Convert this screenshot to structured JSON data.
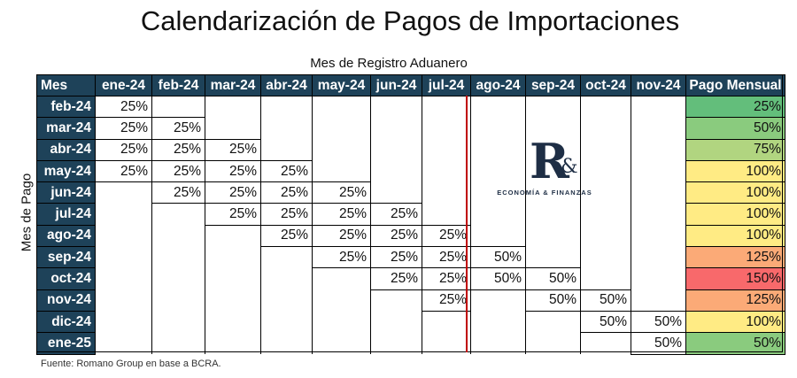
{
  "title": "Calendarización de Pagos de Importaciones",
  "subtitle": "Mes de Registro Aduanero",
  "ylabel": "Mes de Pago",
  "source": "Fuente: Romano Group en base a BCRA.",
  "logo": {
    "mark": "R",
    "amp": "&",
    "tagline": "ECONOMÍA & FINANZAS"
  },
  "colors": {
    "header_bg": "#1e4259",
    "header_text": "#ffffff",
    "divider": "#c00000"
  },
  "chart_data": {
    "type": "table",
    "corner_label": "Mes",
    "columns": [
      "ene-24",
      "feb-24",
      "mar-24",
      "abr-24",
      "may-24",
      "jun-24",
      "jul-24",
      "ago-24",
      "sep-24",
      "oct-24",
      "nov-24"
    ],
    "total_label": "Pago Mensual",
    "rows": [
      {
        "label": "feb-24",
        "cells": [
          "25%",
          "",
          "",
          "",
          "",
          "",
          "",
          "",
          "",
          "",
          ""
        ],
        "total": "25%",
        "color": "#63be7b"
      },
      {
        "label": "mar-24",
        "cells": [
          "25%",
          "25%",
          "",
          "",
          "",
          "",
          "",
          "",
          "",
          "",
          ""
        ],
        "total": "50%",
        "color": "#8acb7e"
      },
      {
        "label": "abr-24",
        "cells": [
          "25%",
          "25%",
          "25%",
          "",
          "",
          "",
          "",
          "",
          "",
          "",
          ""
        ],
        "total": "75%",
        "color": "#b1d580"
      },
      {
        "label": "may-24",
        "cells": [
          "25%",
          "25%",
          "25%",
          "25%",
          "",
          "",
          "",
          "",
          "",
          "",
          ""
        ],
        "total": "100%",
        "color": "#ffeb84"
      },
      {
        "label": "jun-24",
        "cells": [
          "",
          "25%",
          "25%",
          "25%",
          "25%",
          "",
          "",
          "",
          "",
          "",
          ""
        ],
        "total": "100%",
        "color": "#ffeb84"
      },
      {
        "label": "jul-24",
        "cells": [
          "",
          "",
          "25%",
          "25%",
          "25%",
          "25%",
          "",
          "",
          "",
          "",
          ""
        ],
        "total": "100%",
        "color": "#ffeb84"
      },
      {
        "label": "ago-24",
        "cells": [
          "",
          "",
          "",
          "25%",
          "25%",
          "25%",
          "25%",
          "",
          "",
          "",
          ""
        ],
        "total": "100%",
        "color": "#ffeb84"
      },
      {
        "label": "sep-24",
        "cells": [
          "",
          "",
          "",
          "",
          "25%",
          "25%",
          "25%",
          "50%",
          "",
          "",
          ""
        ],
        "total": "125%",
        "color": "#fbaa77"
      },
      {
        "label": "oct-24",
        "cells": [
          "",
          "",
          "",
          "",
          "",
          "25%",
          "25%",
          "50%",
          "50%",
          "",
          ""
        ],
        "total": "150%",
        "color": "#f8696b"
      },
      {
        "label": "nov-24",
        "cells": [
          "",
          "",
          "",
          "",
          "",
          "",
          "25%",
          "",
          "50%",
          "50%",
          ""
        ],
        "total": "125%",
        "color": "#fbaa77"
      },
      {
        "label": "dic-24",
        "cells": [
          "",
          "",
          "",
          "",
          "",
          "",
          "",
          "",
          "",
          "50%",
          "50%"
        ],
        "total": "100%",
        "color": "#ffeb84"
      },
      {
        "label": "ene-25",
        "cells": [
          "",
          "",
          "",
          "",
          "",
          "",
          "",
          "",
          "",
          "",
          "50%"
        ],
        "total": "50%",
        "color": "#8acb7e"
      }
    ]
  }
}
